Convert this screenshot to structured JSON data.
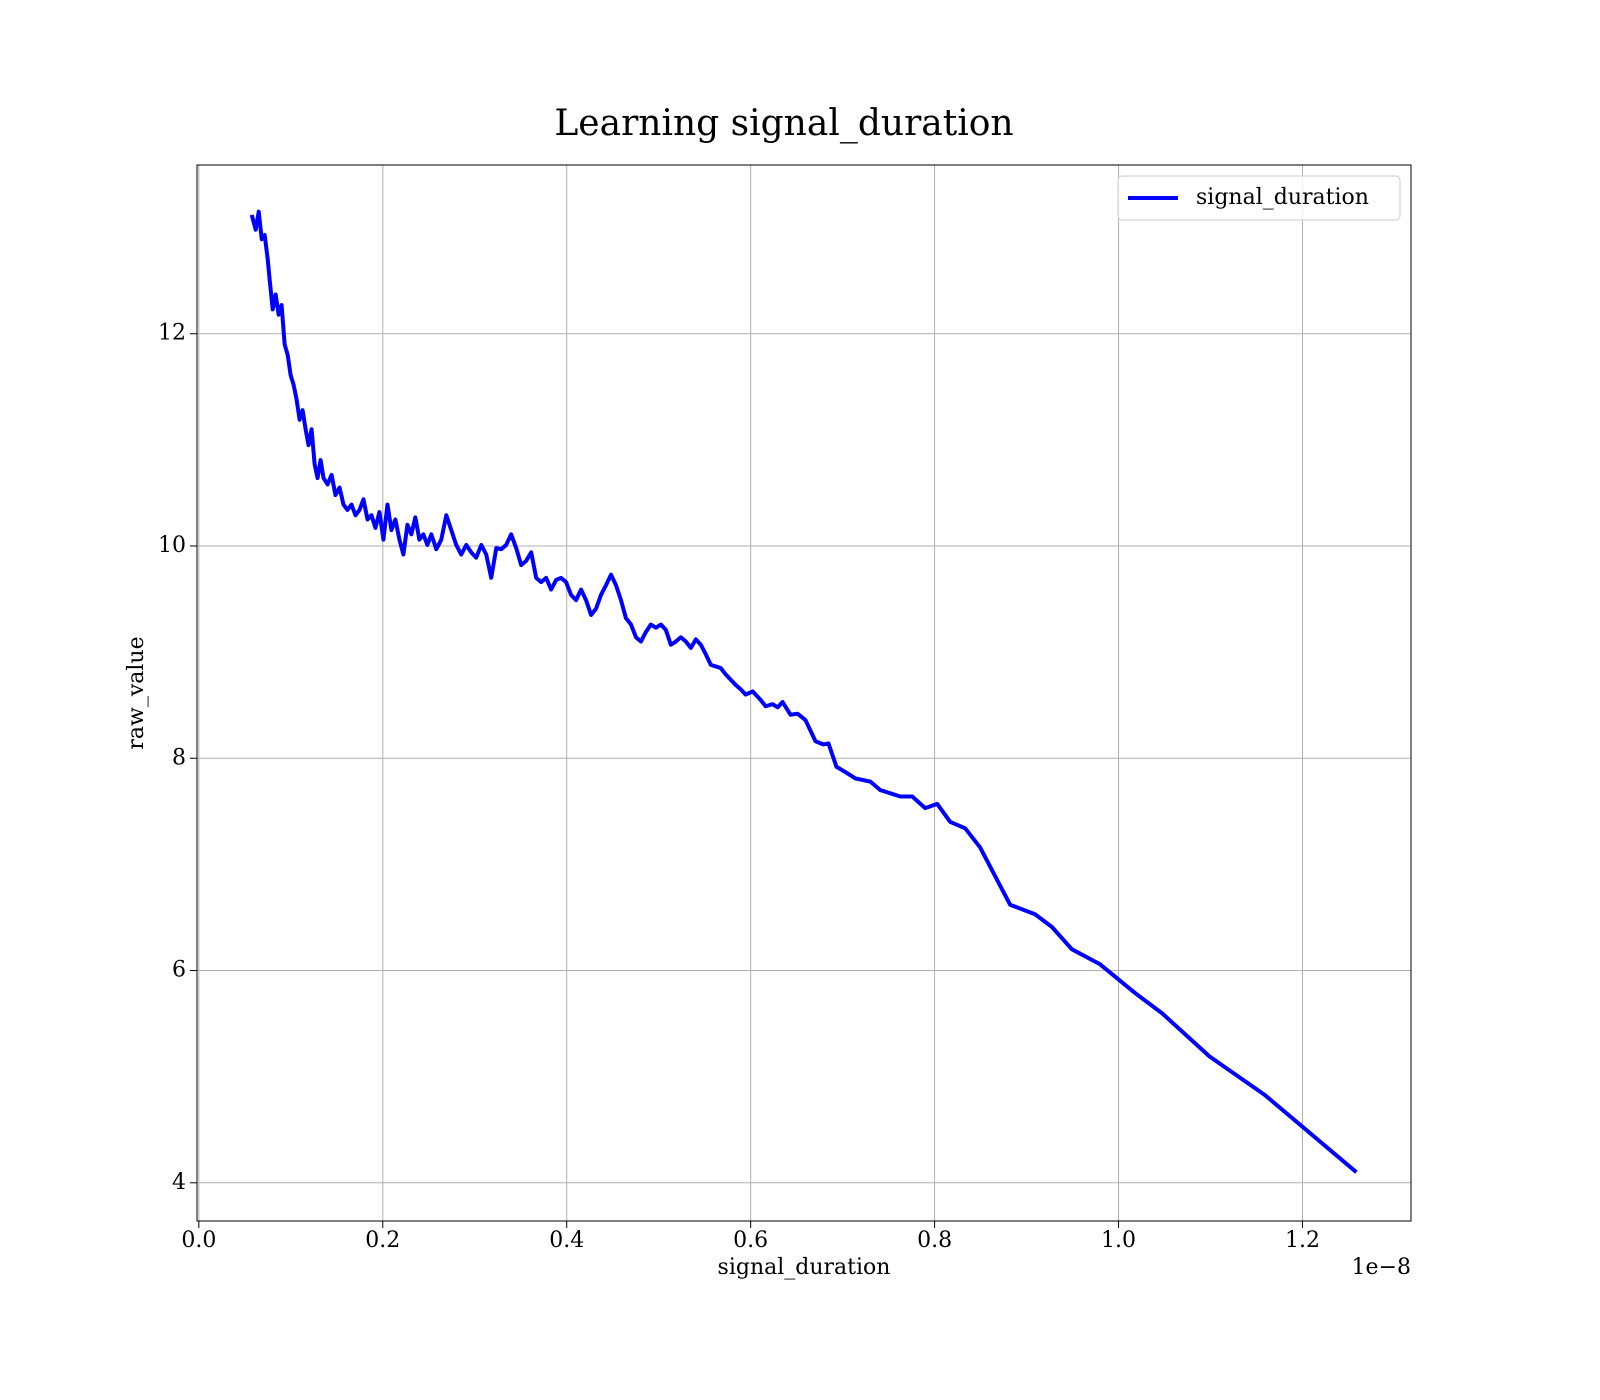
{
  "chart_data": {
    "type": "line",
    "title": "Learning signal_duration",
    "xlabel": "signal_duration",
    "ylabel": "raw_value",
    "x_offset_label": "1e−8",
    "x": [
      0.0575,
      0.0618,
      0.0651,
      0.0684,
      0.0716,
      0.0749,
      0.077,
      0.0803,
      0.0835,
      0.0868,
      0.09,
      0.0933,
      0.0966,
      0.0998,
      0.103,
      0.1063,
      0.1096,
      0.1128,
      0.1161,
      0.1193,
      0.1226,
      0.1259,
      0.1291,
      0.1324,
      0.1356,
      0.14,
      0.1443,
      0.1486,
      0.153,
      0.1573,
      0.1616,
      0.166,
      0.1703,
      0.1747,
      0.179,
      0.1834,
      0.1877,
      0.192,
      0.1964,
      0.2007,
      0.2051,
      0.2094,
      0.2137,
      0.2181,
      0.2224,
      0.2268,
      0.2311,
      0.2354,
      0.2398,
      0.2441,
      0.2485,
      0.2528,
      0.2582,
      0.2636,
      0.2691,
      0.2745,
      0.2799,
      0.2853,
      0.2908,
      0.2962,
      0.3016,
      0.3071,
      0.3125,
      0.3179,
      0.3234,
      0.3288,
      0.3342,
      0.3396,
      0.3451,
      0.3505,
      0.3559,
      0.3614,
      0.3668,
      0.3722,
      0.3776,
      0.383,
      0.3885,
      0.3939,
      0.3993,
      0.4047,
      0.4102,
      0.4156,
      0.421,
      0.4265,
      0.4319,
      0.4373,
      0.4427,
      0.4482,
      0.4536,
      0.459,
      0.4644,
      0.4699,
      0.4753,
      0.4807,
      0.4861,
      0.4915,
      0.497,
      0.5024,
      0.5078,
      0.5132,
      0.5187,
      0.5241,
      0.5295,
      0.535,
      0.5404,
      0.5458,
      0.5512,
      0.5567,
      0.5675,
      0.5729,
      0.5783,
      0.5838,
      0.5891,
      0.5946,
      0.6022,
      0.6108,
      0.6163,
      0.6239,
      0.6293,
      0.6347,
      0.6434,
      0.651,
      0.6596,
      0.6705,
      0.6792,
      0.6846,
      0.6933,
      0.703,
      0.7139,
      0.7302,
      0.741,
      0.7627,
      0.7757,
      0.7898,
      0.8029,
      0.817,
      0.8333,
      0.8495,
      0.8821,
      0.9092,
      0.9276,
      0.9493,
      0.9797,
      1.0177,
      1.047,
      1.099,
      1.1587,
      1.2586
    ],
    "series": [
      {
        "name": "signal_duration",
        "color": "#0000ff",
        "values": [
          13.12,
          12.98,
          13.15,
          12.89,
          12.93,
          12.7,
          12.51,
          12.23,
          12.37,
          12.18,
          12.27,
          11.9,
          11.8,
          11.61,
          11.52,
          11.38,
          11.19,
          11.28,
          11.1,
          10.95,
          11.1,
          10.77,
          10.64,
          10.81,
          10.64,
          10.58,
          10.67,
          10.48,
          10.55,
          10.39,
          10.34,
          10.39,
          10.29,
          10.34,
          10.44,
          10.25,
          10.29,
          10.17,
          10.32,
          10.06,
          10.39,
          10.15,
          10.25,
          10.06,
          9.92,
          10.2,
          10.11,
          10.27,
          10.06,
          10.11,
          10.01,
          10.11,
          9.97,
          10.06,
          10.29,
          10.15,
          10.01,
          9.92,
          10.01,
          9.94,
          9.89,
          10.01,
          9.92,
          9.7,
          9.98,
          9.97,
          10.01,
          10.11,
          9.98,
          9.82,
          9.86,
          9.94,
          9.7,
          9.66,
          9.7,
          9.59,
          9.68,
          9.7,
          9.66,
          9.54,
          9.49,
          9.59,
          9.49,
          9.35,
          9.41,
          9.54,
          9.63,
          9.73,
          9.63,
          9.49,
          9.32,
          9.26,
          9.14,
          9.1,
          9.19,
          9.26,
          9.23,
          9.26,
          9.21,
          9.07,
          9.1,
          9.14,
          9.1,
          9.04,
          9.12,
          9.07,
          8.98,
          8.88,
          8.85,
          8.79,
          8.74,
          8.69,
          8.65,
          8.6,
          8.63,
          8.55,
          8.49,
          8.51,
          8.48,
          8.53,
          8.41,
          8.42,
          8.36,
          8.16,
          8.13,
          8.14,
          7.92,
          7.87,
          7.81,
          7.78,
          7.7,
          7.64,
          7.64,
          7.53,
          7.57,
          7.4,
          7.34,
          7.16,
          6.62,
          6.53,
          6.41,
          6.2,
          6.06,
          5.79,
          5.6,
          5.19,
          4.83,
          4.1
        ]
      }
    ],
    "xlim": [
      -0.002,
      1.318
    ],
    "xticks": [
      {
        "value": 0,
        "label": "0.0"
      },
      0.2,
      0.4,
      0.6,
      0.8,
      {
        "value": 1,
        "label": "1.0"
      },
      1.2
    ],
    "ylim": [
      3.64,
      13.59
    ],
    "yticks": [
      4,
      6,
      8,
      10,
      12
    ],
    "grid": true,
    "legend": "upper right"
  }
}
